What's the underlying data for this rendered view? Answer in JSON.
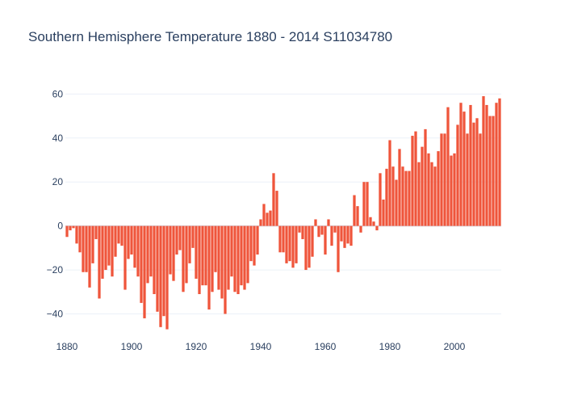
{
  "chart_data": {
    "type": "bar",
    "title": "Southern Hemisphere Temperature 1880 - 2014 S11034780",
    "xlabel": "",
    "ylabel": "",
    "xlim": [
      1879.5,
      2014.5
    ],
    "ylim": [
      -49,
      66
    ],
    "x_ticks": [
      1880,
      1900,
      1920,
      1940,
      1960,
      1980,
      2000
    ],
    "y_ticks": [
      -40,
      -20,
      0,
      20,
      40,
      60
    ],
    "grid": true,
    "bar_color": "#ef553b",
    "grid_color": "#ebf0f8",
    "zero_line_color": "#d8dde6",
    "text_color": "#2a3f5f",
    "x": [
      1880,
      1881,
      1882,
      1883,
      1884,
      1885,
      1886,
      1887,
      1888,
      1889,
      1890,
      1891,
      1892,
      1893,
      1894,
      1895,
      1896,
      1897,
      1898,
      1899,
      1900,
      1901,
      1902,
      1903,
      1904,
      1905,
      1906,
      1907,
      1908,
      1909,
      1910,
      1911,
      1912,
      1913,
      1914,
      1915,
      1916,
      1917,
      1918,
      1919,
      1920,
      1921,
      1922,
      1923,
      1924,
      1925,
      1926,
      1927,
      1928,
      1929,
      1930,
      1931,
      1932,
      1933,
      1934,
      1935,
      1936,
      1937,
      1938,
      1939,
      1940,
      1941,
      1942,
      1943,
      1944,
      1945,
      1946,
      1947,
      1948,
      1949,
      1950,
      1951,
      1952,
      1953,
      1954,
      1955,
      1956,
      1957,
      1958,
      1959,
      1960,
      1961,
      1962,
      1963,
      1964,
      1965,
      1966,
      1967,
      1968,
      1969,
      1970,
      1971,
      1972,
      1973,
      1974,
      1975,
      1976,
      1977,
      1978,
      1979,
      1980,
      1981,
      1982,
      1983,
      1984,
      1985,
      1986,
      1987,
      1988,
      1989,
      1990,
      1991,
      1992,
      1993,
      1994,
      1995,
      1996,
      1997,
      1998,
      1999,
      2000,
      2001,
      2002,
      2003,
      2004,
      2005,
      2006,
      2007,
      2008,
      2009,
      2010,
      2011,
      2012,
      2013,
      2014
    ],
    "values": [
      -5,
      -2,
      -1,
      -8,
      -12,
      -21,
      -21,
      -28,
      -17,
      -6,
      -33,
      -24,
      -20,
      -18,
      -23,
      -14,
      -8,
      -9,
      -29,
      -15,
      -13,
      -19,
      -23,
      -35,
      -42,
      -26,
      -23,
      -31,
      -39,
      -46,
      -41,
      -47,
      -22,
      -25,
      -13,
      -11,
      -30,
      -26,
      -17,
      -10,
      -24,
      -31,
      -27,
      -27,
      -38,
      -30,
      -21,
      -29,
      -33,
      -40,
      -29,
      -23,
      -30,
      -31,
      -27,
      -29,
      -26,
      -16,
      -18,
      -13,
      3,
      10,
      6,
      7,
      24,
      16,
      -12,
      -12,
      -17,
      -16,
      -19,
      -17,
      -3,
      -6,
      -20,
      -19,
      -14,
      3,
      -5,
      -4,
      -13,
      3,
      -9,
      -3,
      -21,
      -7,
      -10,
      -8,
      -9,
      14,
      9,
      -3,
      20,
      20,
      4,
      2,
      -2,
      24,
      12,
      26,
      39,
      27,
      21,
      35,
      27,
      25,
      25,
      41,
      43,
      29,
      36,
      44,
      33,
      29,
      27,
      34,
      42,
      42,
      54,
      32,
      33,
      46,
      56,
      52,
      42,
      55,
      47,
      49,
      42,
      59,
      55,
      50,
      50,
      56,
      58
    ]
  }
}
